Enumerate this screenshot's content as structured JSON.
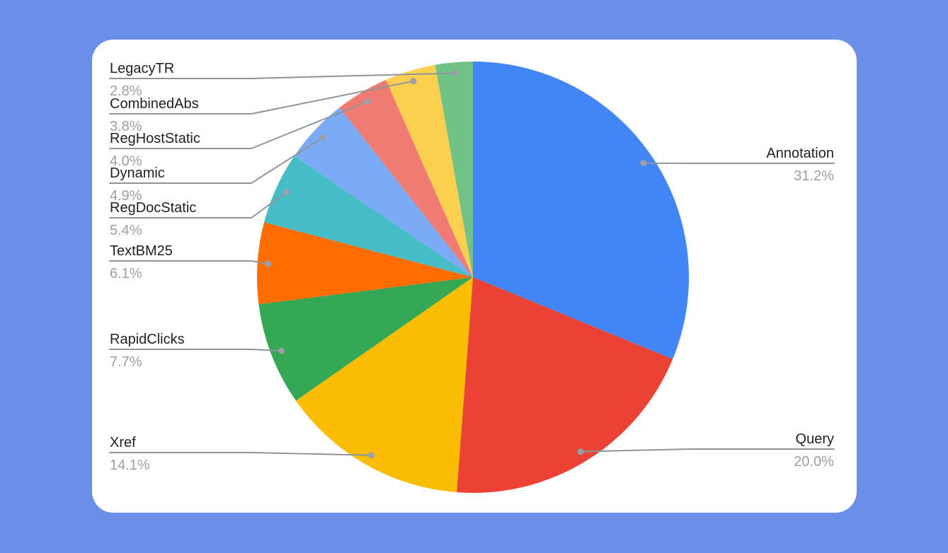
{
  "page": {
    "background_color": "#6B8FE8",
    "card_color": "#FFFFFF"
  },
  "chart_data": {
    "type": "pie",
    "legend_position": "outside-callouts",
    "label_text_color": "#202124",
    "pct_text_color": "#9E9E9E",
    "leader_color": "#8E959B",
    "dot_color": "#9AA0A6",
    "slices": [
      {
        "label": "Annotation",
        "value": 31.2,
        "pct_label": "31.2%",
        "color": "#4285F4"
      },
      {
        "label": "Query",
        "value": 20.0,
        "pct_label": "20.0%",
        "color": "#EA4335"
      },
      {
        "label": "Xref",
        "value": 14.1,
        "pct_label": "14.1%",
        "color": "#FBBC04"
      },
      {
        "label": "RapidClicks",
        "value": 7.7,
        "pct_label": "7.7%",
        "color": "#34A853"
      },
      {
        "label": "TextBM25",
        "value": 6.1,
        "pct_label": "6.1%",
        "color": "#FF6D01"
      },
      {
        "label": "RegDocStatic",
        "value": 5.4,
        "pct_label": "5.4%",
        "color": "#46BDC6"
      },
      {
        "label": "Dynamic",
        "value": 4.9,
        "pct_label": "4.9%",
        "color": "#7BAAF7"
      },
      {
        "label": "RegHostStatic",
        "value": 4.0,
        "pct_label": "4.0%",
        "color": "#F07B72"
      },
      {
        "label": "CombinedAbs",
        "value": 3.8,
        "pct_label": "3.8%",
        "color": "#FCD04F"
      },
      {
        "label": "LegacyTR",
        "value": 2.8,
        "pct_label": "2.8%",
        "color": "#71C287"
      }
    ]
  }
}
